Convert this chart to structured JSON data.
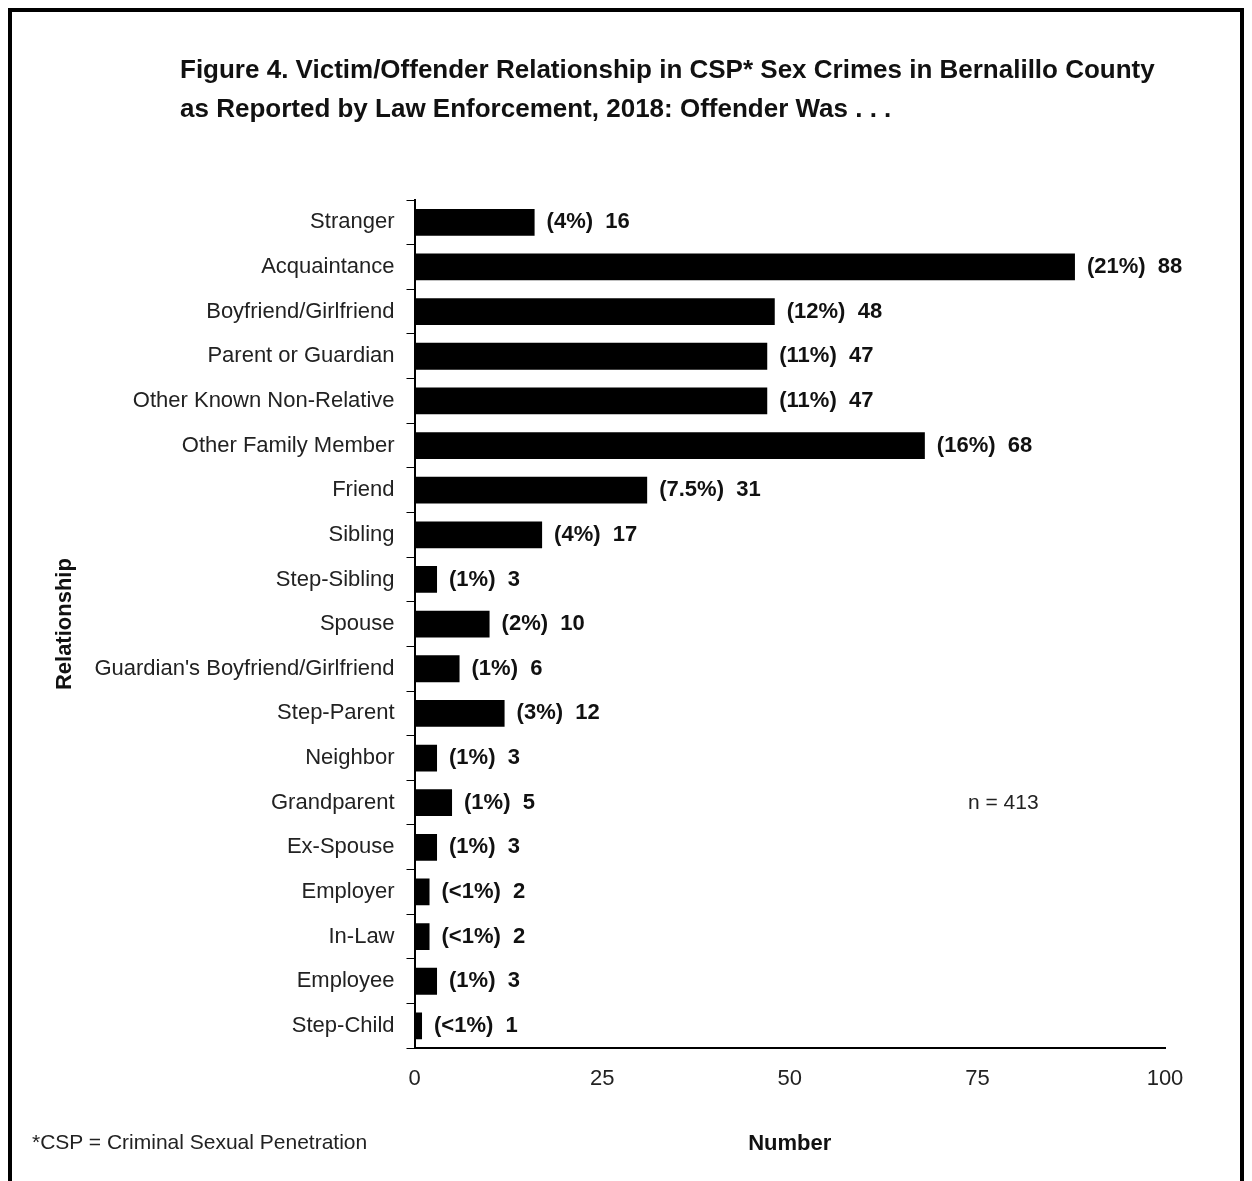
{
  "chart_data": {
    "type": "bar",
    "orientation": "horizontal",
    "title": "Figure 4.  Victim/Offender Relationship in CSP* Sex Crimes in Bernalillo County as Reported by Law Enforcement, 2018: Offender Was . . .",
    "xlabel": "Number",
    "ylabel": "Relationship",
    "categories": [
      "Stranger",
      "Acquaintance",
      "Boyfriend/Girlfriend",
      "Parent or Guardian",
      "Other Known Non-Relative",
      "Other Family Member",
      "Friend",
      "Sibling",
      "Step-Sibling",
      "Spouse",
      "Guardian's Boyfriend/Girlfriend",
      "Step-Parent",
      "Neighbor",
      "Grandparent",
      "Ex-Spouse",
      "Employer",
      "In-Law",
      "Employee",
      "Step-Child"
    ],
    "values": [
      16,
      88,
      48,
      47,
      47,
      68,
      31,
      17,
      3,
      10,
      6,
      12,
      3,
      5,
      3,
      2,
      2,
      3,
      1
    ],
    "value_labels": [
      "(4%)  16",
      "(21%)  88",
      "(12%)  48",
      "(11%)  47",
      "(11%)  47",
      "(16%)  68",
      "(7.5%)  31",
      "(4%)  17",
      "(1%)  3",
      "(2%)  10",
      "(1%)  6",
      "(3%)  12",
      "(1%)  3",
      "(1%)  5",
      "(1%)  3",
      "(<1%)  2",
      "(<1%)  2",
      "(1%)  3",
      "(<1%)  1"
    ],
    "color": "#000000",
    "xlim": [
      0,
      100
    ],
    "xticks": [
      0,
      25,
      50,
      75,
      100
    ],
    "grid": false,
    "legend": false,
    "annotations": [
      "n = 413",
      "*CSP = Criminal Sexual Penetration"
    ]
  }
}
